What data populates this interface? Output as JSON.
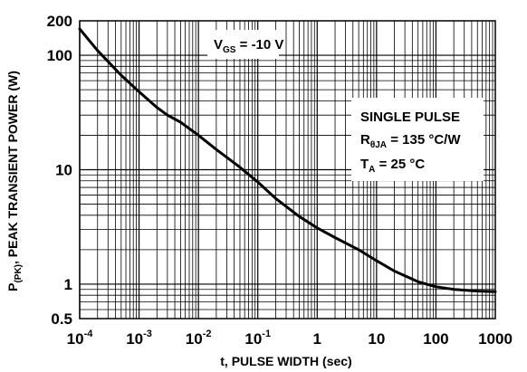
{
  "chart_data": {
    "type": "line",
    "title": "",
    "xlabel": "t, PULSE WIDTH (sec)",
    "ylabel": {
      "main": "P",
      "sub": "(PK)",
      "rest": ", PEAK TRANSIENT POWER (W)"
    },
    "x_scale": "log",
    "y_scale": "log",
    "xlim": [
      0.0001,
      1000
    ],
    "ylim": [
      0.5,
      200
    ],
    "grid": true,
    "x_ticks": [
      {
        "value": 0.0001,
        "base": "10",
        "exp": "-4"
      },
      {
        "value": 0.001,
        "base": "10",
        "exp": "-3"
      },
      {
        "value": 0.01,
        "base": "10",
        "exp": "-2"
      },
      {
        "value": 0.1,
        "base": "10",
        "exp": "-1"
      },
      {
        "value": 1,
        "base": "1",
        "exp": ""
      },
      {
        "value": 10,
        "base": "10",
        "exp": ""
      },
      {
        "value": 100,
        "base": "100",
        "exp": ""
      },
      {
        "value": 1000,
        "base": "1000",
        "exp": ""
      }
    ],
    "y_ticks": [
      {
        "value": 0.5,
        "label": "0.5"
      },
      {
        "value": 1,
        "label": "1"
      },
      {
        "value": 10,
        "label": "10"
      },
      {
        "value": 100,
        "label": "100"
      },
      {
        "value": 200,
        "label": "200"
      }
    ],
    "series": [
      {
        "x": [
          0.0001,
          0.0002,
          0.0005,
          0.001,
          0.002,
          0.003,
          0.005,
          0.01,
          0.02,
          0.05,
          0.1,
          0.2,
          0.5,
          1,
          2,
          5,
          10,
          20,
          50,
          100,
          200,
          500,
          1000
        ],
        "y": [
          170,
          110,
          67,
          48,
          35,
          30,
          26,
          20,
          15,
          10.5,
          7.8,
          5.6,
          3.9,
          3.1,
          2.55,
          2.0,
          1.6,
          1.3,
          1.05,
          0.95,
          0.9,
          0.87,
          0.86
        ]
      }
    ],
    "annotations": [
      {
        "main": "V",
        "sub": "GS",
        "rest": " = -10 V"
      },
      {
        "text": "SINGLE PULSE"
      },
      {
        "main": "R",
        "sub": "θJA",
        "rest": " = 135 °C/W"
      },
      {
        "main": "T",
        "sub": "A",
        "rest": " = 25 °C"
      }
    ],
    "line_color": "#000000",
    "grid_color": "#000000"
  }
}
